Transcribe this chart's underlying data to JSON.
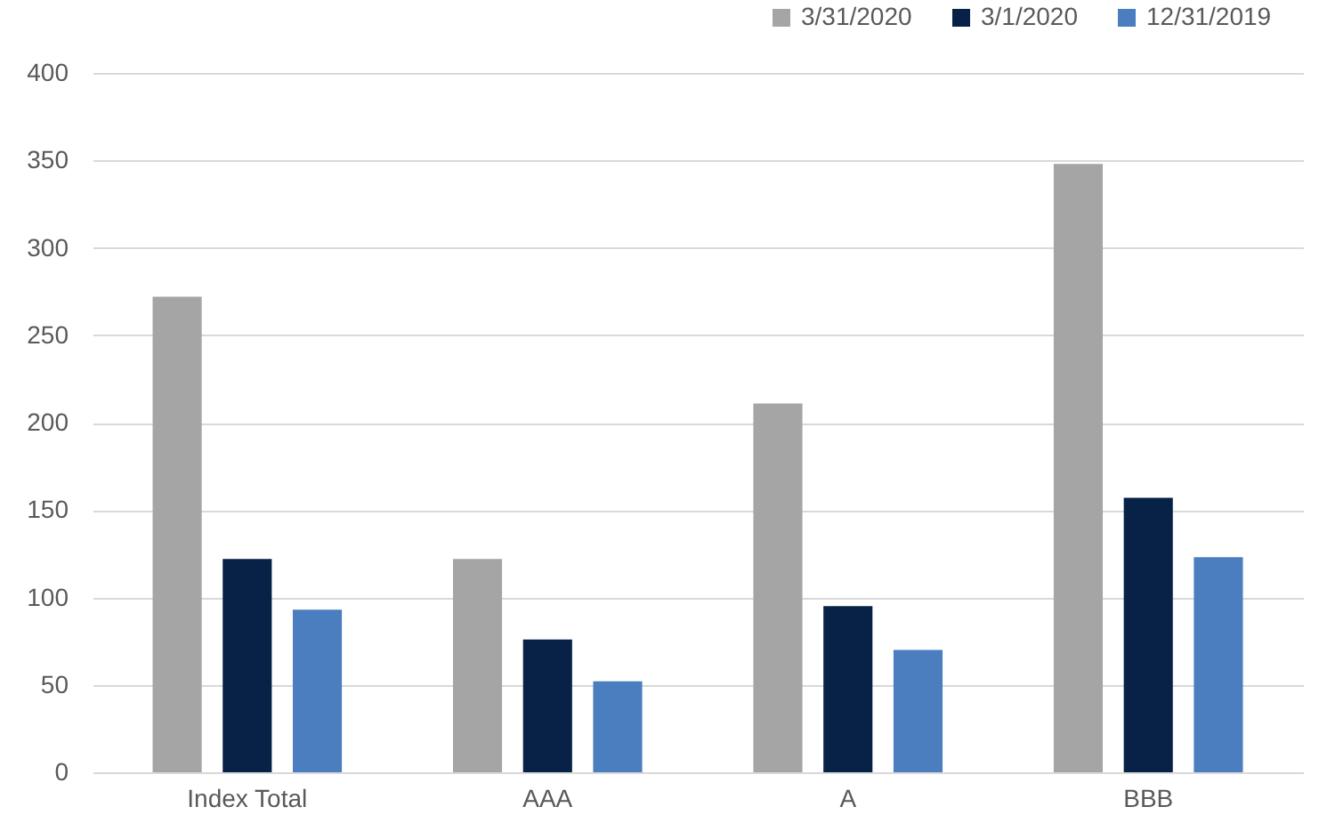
{
  "chart_data": {
    "type": "bar",
    "categories": [
      "Index Total",
      "AAA",
      "A",
      "BBB"
    ],
    "series": [
      {
        "name": "3/31/2020",
        "color": "#a5a5a5",
        "values": [
          272,
          122,
          211,
          348
        ]
      },
      {
        "name": "3/1/2020",
        "color": "#082147",
        "values": [
          122,
          76,
          95,
          157
        ]
      },
      {
        "name": "12/31/2019",
        "color": "#4a7ebf",
        "values": [
          93,
          52,
          70,
          123
        ]
      }
    ],
    "ylim": [
      0,
      400
    ],
    "yticks": [
      0,
      50,
      100,
      150,
      200,
      250,
      300,
      350,
      400
    ],
    "grid": "y",
    "legend": "top right"
  }
}
